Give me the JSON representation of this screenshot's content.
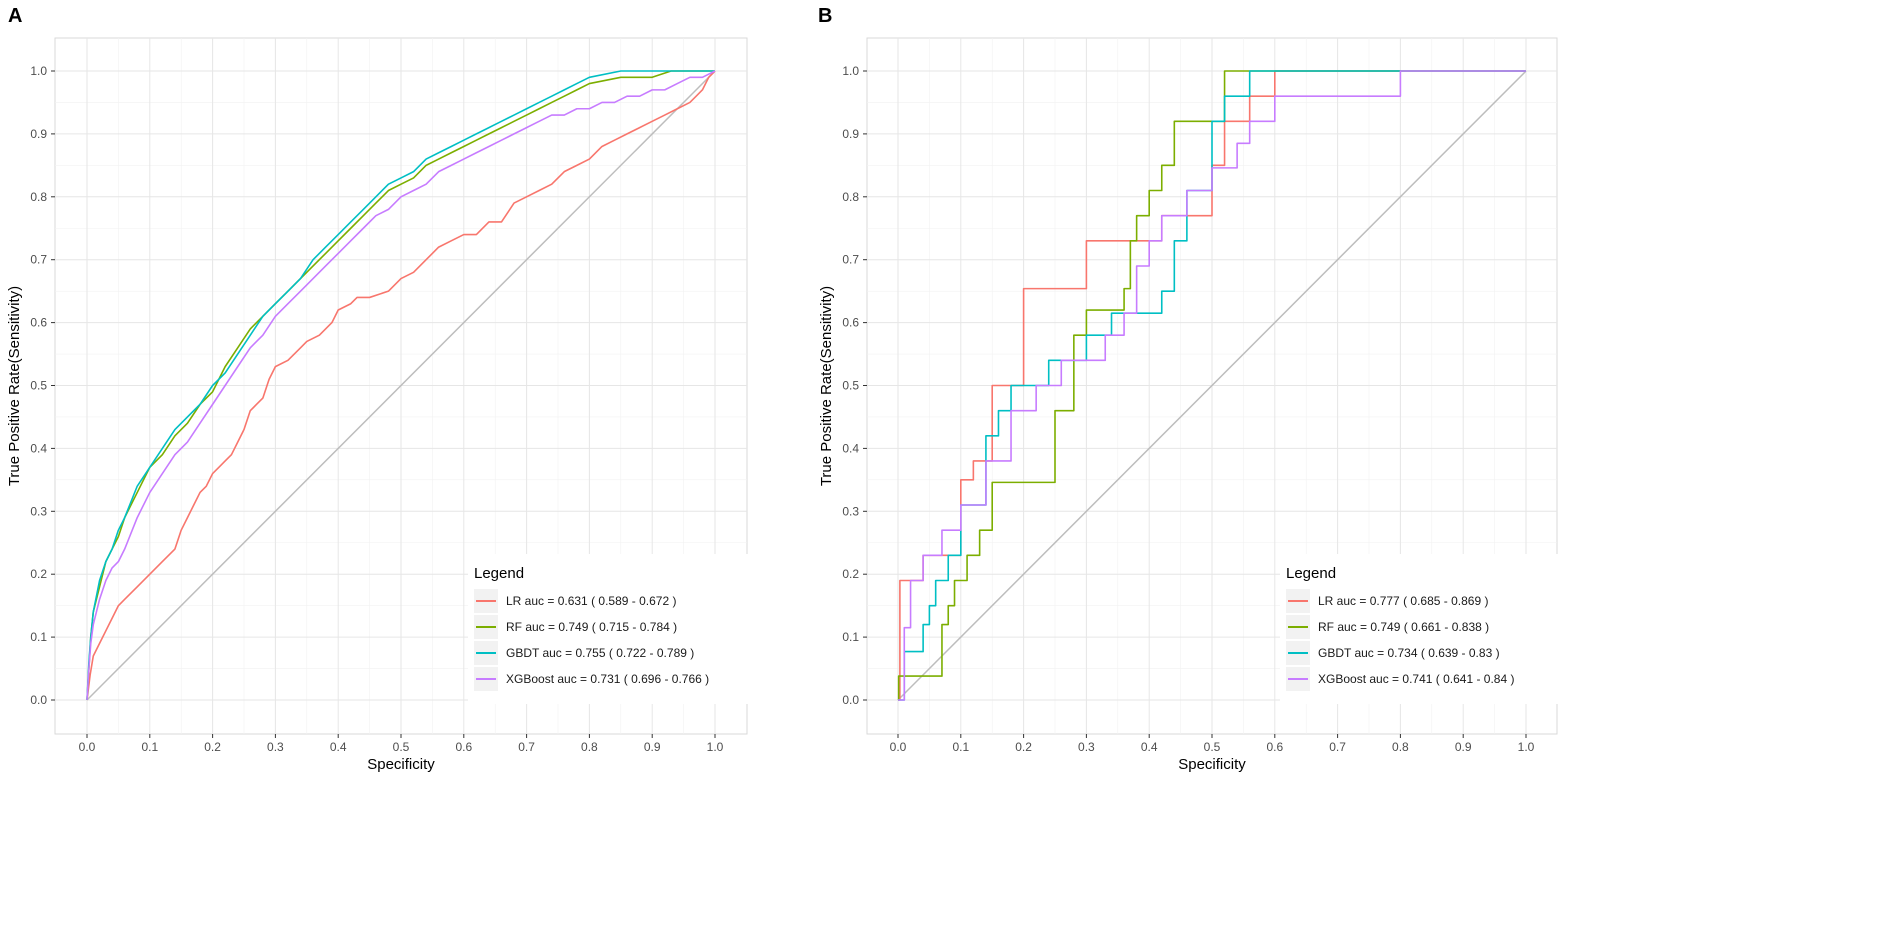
{
  "figure": {
    "panel_count": 2
  },
  "chart_data": [
    {
      "panel_label": "A",
      "type": "line",
      "title": "",
      "xlabel": "Specificity",
      "ylabel": "True Positive Rate(Sensitivity)",
      "xlim": [
        0,
        1
      ],
      "ylim": [
        0,
        1
      ],
      "xticks": [
        0.0,
        0.1,
        0.2,
        0.3,
        0.4,
        0.5,
        0.6,
        0.7,
        0.8,
        0.9,
        1.0
      ],
      "xtick_labels": [
        "0.0",
        "0.1",
        "0.2",
        "0.3",
        "0.4",
        "0.5",
        "0.6",
        "0.7",
        "0.8",
        "0.9",
        "1.0"
      ],
      "yticks": [
        0.0,
        0.1,
        0.2,
        0.3,
        0.4,
        0.5,
        0.6,
        0.7,
        0.8,
        0.9,
        1.0
      ],
      "ytick_labels": [
        "0.0",
        "0.1",
        "0.2",
        "0.3",
        "0.4",
        "0.5",
        "0.6",
        "0.7",
        "0.8",
        "0.9",
        "1.0"
      ],
      "grid": true,
      "reference_line": {
        "x": [
          0,
          1
        ],
        "y": [
          0,
          1
        ],
        "color": "#bdbdbd"
      },
      "legend": {
        "title": "Legend",
        "position": "bottom-right",
        "entries": [
          {
            "name": "LR",
            "auc": "0.631",
            "ci": "0.589 - 0.672"
          },
          {
            "name": "RF",
            "auc": "0.749",
            "ci": "0.715 - 0.784"
          },
          {
            "name": "GBDT",
            "auc": "0.755",
            "ci": "0.722 - 0.789"
          },
          {
            "name": "XGBoost",
            "auc": "0.731",
            "ci": "0.696 - 0.766"
          }
        ]
      },
      "series": [
        {
          "name": "LR",
          "color": "#F8766D",
          "step": false,
          "x": [
            0,
            0.005,
            0.01,
            0.02,
            0.03,
            0.04,
            0.05,
            0.06,
            0.08,
            0.1,
            0.12,
            0.14,
            0.15,
            0.16,
            0.17,
            0.18,
            0.19,
            0.2,
            0.21,
            0.22,
            0.23,
            0.24,
            0.25,
            0.26,
            0.27,
            0.28,
            0.29,
            0.3,
            0.32,
            0.34,
            0.35,
            0.37,
            0.39,
            0.4,
            0.42,
            0.43,
            0.45,
            0.48,
            0.5,
            0.52,
            0.54,
            0.56,
            0.58,
            0.6,
            0.62,
            0.64,
            0.66,
            0.68,
            0.7,
            0.72,
            0.74,
            0.76,
            0.78,
            0.8,
            0.82,
            0.84,
            0.86,
            0.88,
            0.9,
            0.92,
            0.94,
            0.96,
            0.97,
            0.98,
            0.99,
            1.0
          ],
          "y": [
            0,
            0.04,
            0.07,
            0.09,
            0.11,
            0.13,
            0.15,
            0.16,
            0.18,
            0.2,
            0.22,
            0.24,
            0.27,
            0.29,
            0.31,
            0.33,
            0.34,
            0.36,
            0.37,
            0.38,
            0.39,
            0.41,
            0.43,
            0.46,
            0.47,
            0.48,
            0.51,
            0.53,
            0.54,
            0.56,
            0.57,
            0.58,
            0.6,
            0.62,
            0.63,
            0.64,
            0.64,
            0.65,
            0.67,
            0.68,
            0.7,
            0.72,
            0.73,
            0.74,
            0.74,
            0.76,
            0.76,
            0.79,
            0.8,
            0.81,
            0.82,
            0.84,
            0.85,
            0.86,
            0.88,
            0.89,
            0.9,
            0.91,
            0.92,
            0.93,
            0.94,
            0.95,
            0.96,
            0.97,
            0.99,
            1.0
          ]
        },
        {
          "name": "RF",
          "color": "#7CAE00",
          "step": false,
          "x": [
            0,
            0.003,
            0.006,
            0.01,
            0.02,
            0.03,
            0.04,
            0.05,
            0.06,
            0.08,
            0.1,
            0.12,
            0.14,
            0.16,
            0.18,
            0.2,
            0.22,
            0.24,
            0.26,
            0.28,
            0.3,
            0.32,
            0.34,
            0.36,
            0.38,
            0.4,
            0.42,
            0.44,
            0.46,
            0.48,
            0.5,
            0.52,
            0.54,
            0.56,
            0.58,
            0.6,
            0.62,
            0.64,
            0.66,
            0.68,
            0.7,
            0.72,
            0.74,
            0.76,
            0.78,
            0.8,
            0.85,
            0.9,
            0.93,
            0.95,
            0.97,
            1.0
          ],
          "y": [
            0,
            0.05,
            0.1,
            0.14,
            0.18,
            0.22,
            0.24,
            0.26,
            0.29,
            0.33,
            0.37,
            0.39,
            0.42,
            0.44,
            0.47,
            0.49,
            0.53,
            0.56,
            0.59,
            0.61,
            0.63,
            0.65,
            0.67,
            0.69,
            0.71,
            0.73,
            0.75,
            0.77,
            0.79,
            0.81,
            0.82,
            0.83,
            0.85,
            0.86,
            0.87,
            0.88,
            0.89,
            0.9,
            0.91,
            0.92,
            0.93,
            0.94,
            0.95,
            0.96,
            0.97,
            0.98,
            0.99,
            0.99,
            1.0,
            1.0,
            1.0,
            1.0
          ]
        },
        {
          "name": "GBDT",
          "color": "#00BFC4",
          "step": false,
          "x": [
            0,
            0.003,
            0.006,
            0.01,
            0.02,
            0.03,
            0.04,
            0.05,
            0.06,
            0.08,
            0.1,
            0.12,
            0.14,
            0.16,
            0.18,
            0.2,
            0.22,
            0.24,
            0.26,
            0.28,
            0.3,
            0.32,
            0.34,
            0.36,
            0.38,
            0.4,
            0.42,
            0.44,
            0.46,
            0.48,
            0.5,
            0.52,
            0.54,
            0.56,
            0.58,
            0.6,
            0.62,
            0.64,
            0.66,
            0.68,
            0.7,
            0.72,
            0.74,
            0.76,
            0.78,
            0.8,
            0.85,
            0.9,
            0.95,
            1.0
          ],
          "y": [
            0,
            0.06,
            0.1,
            0.14,
            0.19,
            0.22,
            0.24,
            0.27,
            0.29,
            0.34,
            0.37,
            0.4,
            0.43,
            0.45,
            0.47,
            0.5,
            0.52,
            0.55,
            0.58,
            0.61,
            0.63,
            0.65,
            0.67,
            0.7,
            0.72,
            0.74,
            0.76,
            0.78,
            0.8,
            0.82,
            0.83,
            0.84,
            0.86,
            0.87,
            0.88,
            0.89,
            0.9,
            0.91,
            0.92,
            0.93,
            0.94,
            0.95,
            0.96,
            0.97,
            0.98,
            0.99,
            1.0,
            1.0,
            1.0,
            1.0
          ]
        },
        {
          "name": "XGBoost",
          "color": "#C77CFF",
          "step": false,
          "x": [
            0,
            0.003,
            0.006,
            0.01,
            0.02,
            0.03,
            0.04,
            0.05,
            0.06,
            0.08,
            0.1,
            0.12,
            0.14,
            0.16,
            0.18,
            0.2,
            0.22,
            0.24,
            0.26,
            0.28,
            0.3,
            0.32,
            0.34,
            0.36,
            0.38,
            0.4,
            0.42,
            0.44,
            0.46,
            0.48,
            0.5,
            0.52,
            0.54,
            0.56,
            0.58,
            0.6,
            0.62,
            0.64,
            0.66,
            0.68,
            0.7,
            0.72,
            0.74,
            0.76,
            0.78,
            0.8,
            0.82,
            0.84,
            0.86,
            0.88,
            0.9,
            0.92,
            0.94,
            0.96,
            0.98,
            1.0
          ],
          "y": [
            0,
            0.05,
            0.09,
            0.12,
            0.16,
            0.19,
            0.21,
            0.22,
            0.24,
            0.29,
            0.33,
            0.36,
            0.39,
            0.41,
            0.44,
            0.47,
            0.5,
            0.53,
            0.56,
            0.58,
            0.61,
            0.63,
            0.65,
            0.67,
            0.69,
            0.71,
            0.73,
            0.75,
            0.77,
            0.78,
            0.8,
            0.81,
            0.82,
            0.84,
            0.85,
            0.86,
            0.87,
            0.88,
            0.89,
            0.9,
            0.91,
            0.92,
            0.93,
            0.93,
            0.94,
            0.94,
            0.95,
            0.95,
            0.96,
            0.96,
            0.97,
            0.97,
            0.98,
            0.99,
            0.99,
            1.0
          ]
        }
      ]
    },
    {
      "panel_label": "B",
      "type": "line",
      "title": "",
      "xlabel": "Specificity",
      "ylabel": "True Positive Rate(Sensitivity)",
      "xlim": [
        0,
        1
      ],
      "ylim": [
        0,
        1
      ],
      "xticks": [
        0.0,
        0.1,
        0.2,
        0.3,
        0.4,
        0.5,
        0.6,
        0.7,
        0.8,
        0.9,
        1.0
      ],
      "xtick_labels": [
        "0.0",
        "0.1",
        "0.2",
        "0.3",
        "0.4",
        "0.5",
        "0.6",
        "0.7",
        "0.8",
        "0.9",
        "1.0"
      ],
      "yticks": [
        0.0,
        0.1,
        0.2,
        0.3,
        0.4,
        0.5,
        0.6,
        0.7,
        0.8,
        0.9,
        1.0
      ],
      "ytick_labels": [
        "0.0",
        "0.1",
        "0.2",
        "0.3",
        "0.4",
        "0.5",
        "0.6",
        "0.7",
        "0.8",
        "0.9",
        "1.0"
      ],
      "grid": true,
      "reference_line": {
        "x": [
          0,
          1
        ],
        "y": [
          0,
          1
        ],
        "color": "#bdbdbd"
      },
      "legend": {
        "title": "Legend",
        "position": "bottom-right",
        "entries": [
          {
            "name": "LR",
            "auc": "0.777",
            "ci": "0.685 - 0.869"
          },
          {
            "name": "RF",
            "auc": "0.749",
            "ci": "0.661 - 0.838"
          },
          {
            "name": "GBDT",
            "auc": "0.734",
            "ci": "0.639 - 0.83"
          },
          {
            "name": "XGBoost",
            "auc": "0.741",
            "ci": "0.641 - 0.84"
          }
        ]
      },
      "series": [
        {
          "name": "LR",
          "color": "#F8766D",
          "step": true,
          "x": [
            0,
            0.003,
            0.013,
            0.04,
            0.1,
            0.12,
            0.15,
            0.2,
            0.3,
            0.42,
            0.46,
            0.5,
            0.52,
            0.56,
            0.6,
            0.61,
            0.7,
            0.79,
            1.0
          ],
          "y": [
            0,
            0.19,
            0.19,
            0.23,
            0.35,
            0.38,
            0.5,
            0.654,
            0.73,
            0.77,
            0.77,
            0.85,
            0.92,
            0.96,
            1.0,
            1.0,
            1.0,
            1.0,
            1.0
          ]
        },
        {
          "name": "RF",
          "color": "#7CAE00",
          "step": true,
          "x": [
            0,
            0.001,
            0.06,
            0.07,
            0.08,
            0.09,
            0.11,
            0.13,
            0.15,
            0.2,
            0.25,
            0.28,
            0.3,
            0.36,
            0.37,
            0.38,
            0.4,
            0.42,
            0.44,
            0.48,
            0.52,
            0.53,
            0.6,
            1.0
          ],
          "y": [
            0,
            0.038,
            0.038,
            0.12,
            0.15,
            0.19,
            0.23,
            0.27,
            0.346,
            0.346,
            0.46,
            0.58,
            0.62,
            0.654,
            0.73,
            0.77,
            0.81,
            0.85,
            0.92,
            0.92,
            1.0,
            1.0,
            1.0,
            1.0
          ]
        },
        {
          "name": "GBDT",
          "color": "#00BFC4",
          "step": true,
          "x": [
            0,
            0.01,
            0.04,
            0.05,
            0.06,
            0.08,
            0.1,
            0.14,
            0.16,
            0.18,
            0.2,
            0.24,
            0.28,
            0.3,
            0.34,
            0.35,
            0.38,
            0.42,
            0.44,
            0.46,
            0.5,
            0.52,
            0.56,
            0.62,
            0.79,
            1.0
          ],
          "y": [
            0,
            0.077,
            0.12,
            0.15,
            0.19,
            0.23,
            0.31,
            0.42,
            0.46,
            0.5,
            0.5,
            0.54,
            0.54,
            0.58,
            0.615,
            0.615,
            0.615,
            0.65,
            0.73,
            0.81,
            0.92,
            0.96,
            1.0,
            1.0,
            1.0,
            1.0
          ]
        },
        {
          "name": "XGBoost",
          "color": "#C77CFF",
          "step": true,
          "x": [
            0,
            0.01,
            0.02,
            0.04,
            0.07,
            0.1,
            0.14,
            0.18,
            0.22,
            0.26,
            0.3,
            0.33,
            0.36,
            0.38,
            0.4,
            0.42,
            0.46,
            0.5,
            0.54,
            0.56,
            0.6,
            0.7,
            0.79,
            0.8,
            1.0
          ],
          "y": [
            0,
            0.115,
            0.19,
            0.23,
            0.27,
            0.31,
            0.38,
            0.46,
            0.5,
            0.54,
            0.54,
            0.58,
            0.615,
            0.69,
            0.73,
            0.77,
            0.81,
            0.846,
            0.885,
            0.92,
            0.96,
            0.96,
            0.96,
            1.0,
            1.0
          ]
        }
      ]
    }
  ]
}
